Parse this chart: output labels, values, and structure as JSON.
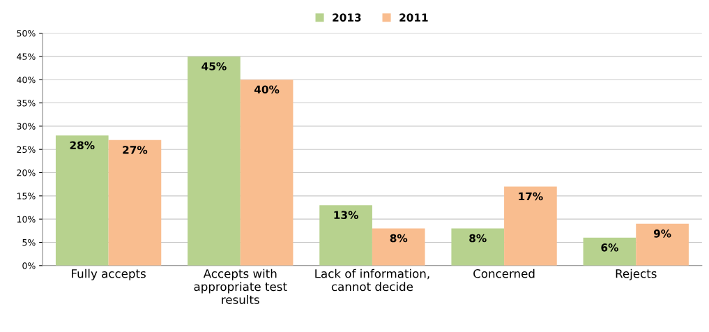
{
  "chart_data": {
    "type": "bar",
    "categories": [
      "Fully accepts",
      "Accepts with appropriate test results",
      "Lack of information, cannot decide",
      "Concerned",
      "Rejects"
    ],
    "series": [
      {
        "name": "2013",
        "color": "#b7d28e",
        "values": [
          28,
          45,
          13,
          8,
          6
        ],
        "value_labels": [
          "28%",
          "45%",
          "13%",
          "8%",
          "6%"
        ]
      },
      {
        "name": "2011",
        "color": "#f9bd8f",
        "values": [
          27,
          40,
          8,
          17,
          9
        ],
        "value_labels": [
          "27%",
          "40%",
          "8%",
          "17%",
          "9%"
        ]
      }
    ],
    "ylim": [
      0,
      50
    ],
    "yticks": [
      {
        "value": 0,
        "label": "0%"
      },
      {
        "value": 5,
        "label": "5%"
      },
      {
        "value": 10,
        "label": "10%"
      },
      {
        "value": 15,
        "label": "15%"
      },
      {
        "value": 20,
        "label": "20%"
      },
      {
        "value": 25,
        "label": "25%"
      },
      {
        "value": 30,
        "label": "30%"
      },
      {
        "value": 35,
        "label": "35%"
      },
      {
        "value": 40,
        "label": "40%"
      },
      {
        "value": 45,
        "label": "45%"
      },
      {
        "value": 50,
        "label": "50%"
      }
    ],
    "grid": "y",
    "legend": "top"
  }
}
